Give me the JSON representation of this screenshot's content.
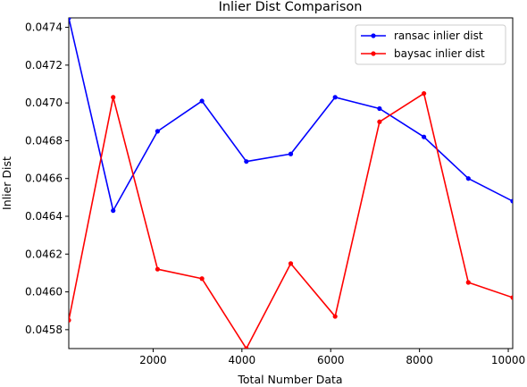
{
  "chart_data": {
    "type": "line",
    "title": "Inlier Dist Comparison",
    "xlabel": "Total Number Data",
    "ylabel": "Inlier Dist",
    "xlim": [
      100,
      10100
    ],
    "ylim": [
      0.0457,
      0.04745
    ],
    "xticks": [
      2000,
      4000,
      6000,
      8000,
      10000
    ],
    "xtick_labels": [
      "2000",
      "4000",
      "6000",
      "8000",
      "10000"
    ],
    "yticks": [
      0.0458,
      0.046,
      0.0462,
      0.0464,
      0.0466,
      0.0468,
      0.047,
      0.0472,
      0.0474
    ],
    "ytick_labels": [
      "0.0458",
      "0.0460",
      "0.0462",
      "0.0464",
      "0.0466",
      "0.0468",
      "0.0470",
      "0.0472",
      "0.0474"
    ],
    "grid": false,
    "legend_position": "top-right",
    "x": [
      100,
      1100,
      2100,
      3100,
      4100,
      5100,
      6100,
      7100,
      8100,
      9100,
      10100
    ],
    "series": [
      {
        "name": "ransac inlier dist",
        "color": "#0000ff",
        "values": [
          0.04745,
          0.04643,
          0.04685,
          0.04701,
          0.04669,
          0.04673,
          0.04703,
          0.04697,
          0.04682,
          0.0466,
          0.04648
        ]
      },
      {
        "name": "baysac inlier dist",
        "color": "#ff0000",
        "values": [
          0.04585,
          0.04703,
          0.04612,
          0.04607,
          0.0457,
          0.04615,
          0.04587,
          0.0469,
          0.04705,
          0.04605,
          0.04597
        ]
      }
    ]
  }
}
